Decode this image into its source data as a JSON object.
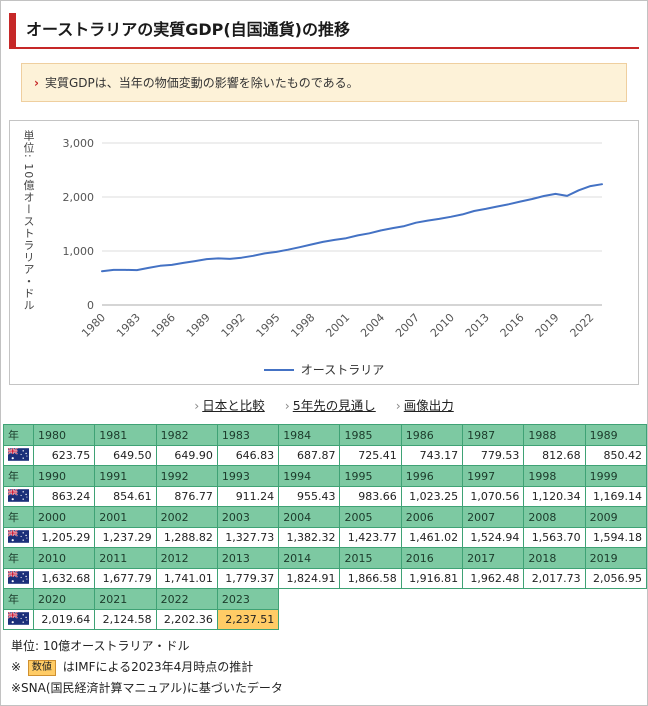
{
  "page": {
    "title": "オーストラリアの実質GDP(自国通貨)の推移",
    "note": "実質GDPは、当年の物価変動の影響を除いたものである。",
    "links": [
      {
        "label": "日本と比較"
      },
      {
        "label": "5年先の見通し"
      },
      {
        "label": "画像出力"
      }
    ]
  },
  "icons": {
    "note_arrow": "›",
    "chevron": "›",
    "flag": "australia-flag"
  },
  "colors": {
    "accent_red": "#c62828",
    "note_bg": "#fdf2d8",
    "note_border": "#efcf9f",
    "table_header_green": "#7dc9a2",
    "table_border_green": "#3fa275",
    "estimate_orange": "#ffcc66",
    "line_blue": "#4472c4"
  },
  "chart_data": {
    "type": "line",
    "title": "オーストラリアの実質GDP(自国通貨)の推移",
    "ylabel": "単位: 10億オーストラリア・ドル",
    "xlabel": "",
    "ylim": [
      0,
      3000
    ],
    "yticks": [
      0,
      1000,
      2000,
      3000
    ],
    "xticks": [
      1980,
      1983,
      1986,
      1989,
      1992,
      1995,
      1998,
      2001,
      2004,
      2007,
      2010,
      2013,
      2016,
      2019,
      2022
    ],
    "grid": "horizontal",
    "legend_position": "bottom",
    "x": [
      1980,
      1981,
      1982,
      1983,
      1984,
      1985,
      1986,
      1987,
      1988,
      1989,
      1990,
      1991,
      1992,
      1993,
      1994,
      1995,
      1996,
      1997,
      1998,
      1999,
      2000,
      2001,
      2002,
      2003,
      2004,
      2005,
      2006,
      2007,
      2008,
      2009,
      2010,
      2011,
      2012,
      2013,
      2014,
      2015,
      2016,
      2017,
      2018,
      2019,
      2020,
      2021,
      2022,
      2023
    ],
    "series": [
      {
        "name": "オーストラリア",
        "values": [
          623.75,
          649.5,
          649.9,
          646.83,
          687.87,
          725.41,
          743.17,
          779.53,
          812.68,
          850.42,
          863.24,
          854.61,
          876.77,
          911.24,
          955.43,
          983.66,
          1023.25,
          1070.56,
          1120.34,
          1169.14,
          1205.29,
          1237.29,
          1288.82,
          1327.73,
          1382.32,
          1423.77,
          1461.02,
          1524.94,
          1563.7,
          1594.18,
          1632.68,
          1677.79,
          1741.01,
          1779.37,
          1824.91,
          1866.58,
          1916.81,
          1962.48,
          2017.73,
          2056.95,
          2019.64,
          2124.58,
          2202.36,
          2237.51
        ]
      }
    ]
  },
  "table": {
    "corner_label": "年",
    "estimate_years": [
      2023
    ]
  },
  "footer": {
    "unit": "単位: 10億オーストラリア・ドル",
    "note2_prefix": "※ ",
    "estimate_box_label": "数値",
    "note2_text": " はIMFによる2023年4月時点の推計",
    "note3": "※SNA(国民経済計算マニュアル)に基づいたデータ"
  }
}
